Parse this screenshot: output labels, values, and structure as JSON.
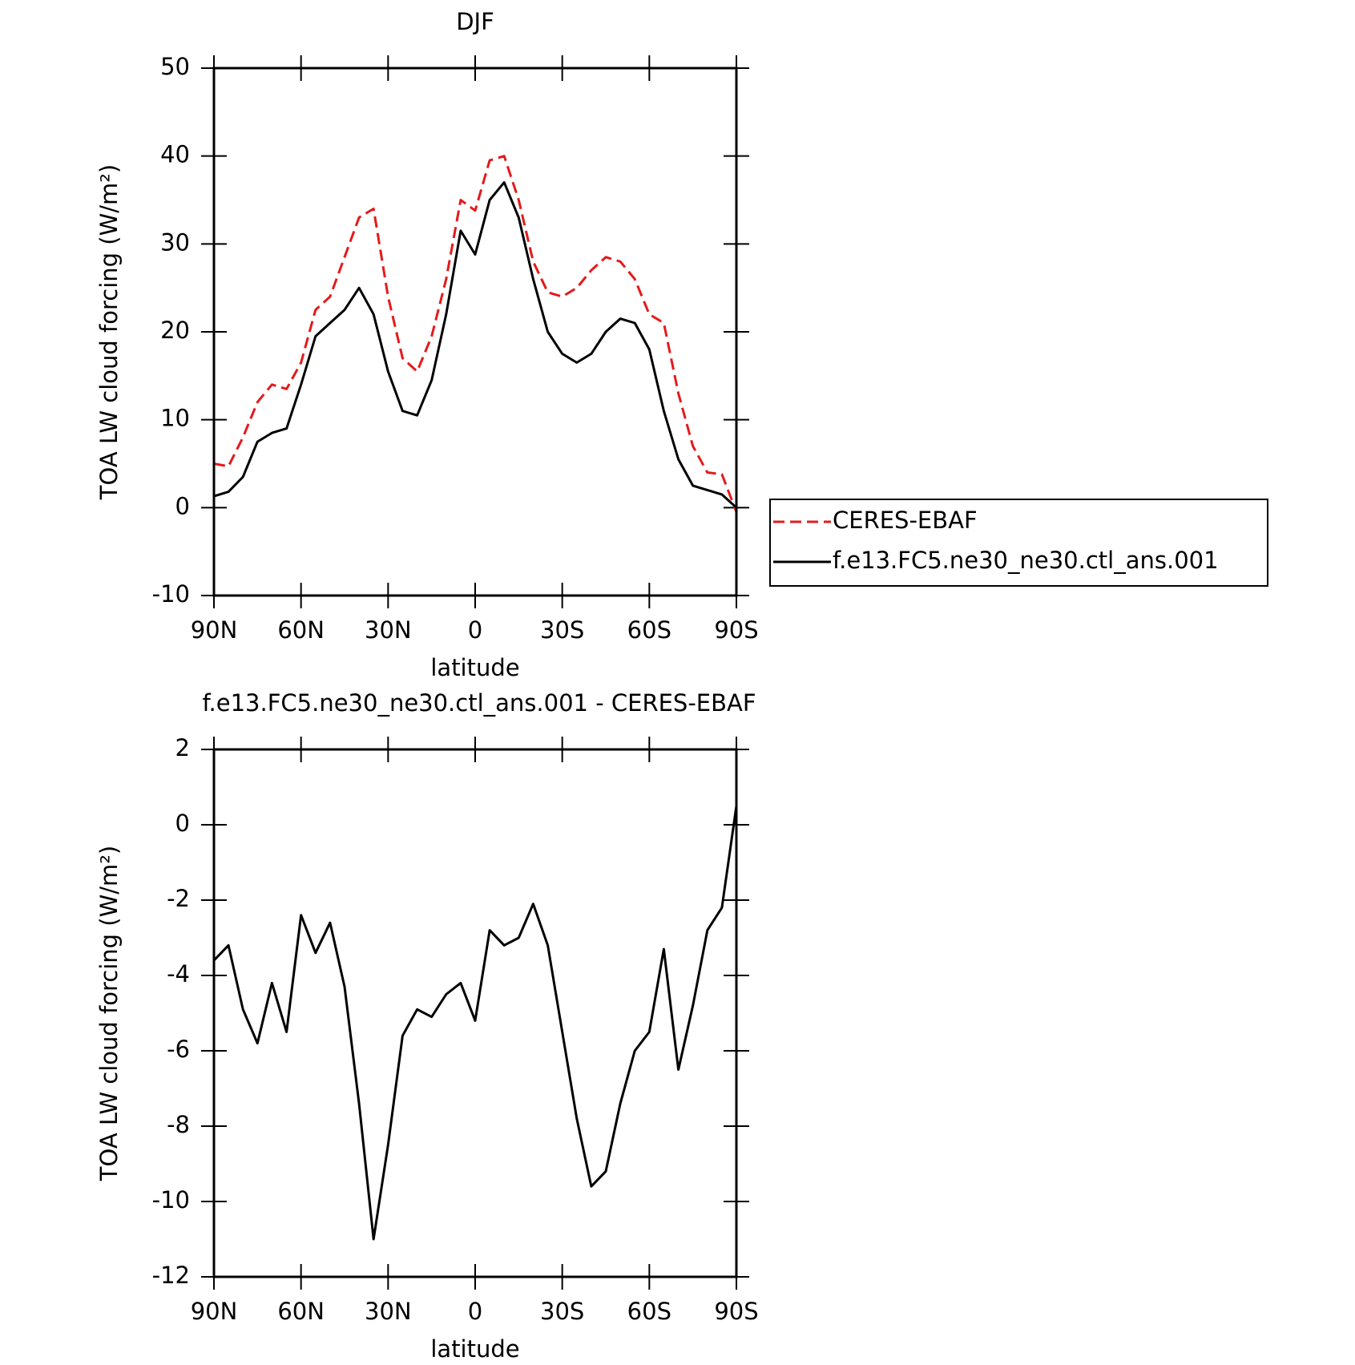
{
  "chart_data": [
    {
      "type": "line",
      "title": "DJF",
      "xlabel": "latitude",
      "ylabel": "TOA LW cloud forcing (W/m²)",
      "x": [
        90,
        85,
        80,
        75,
        70,
        65,
        60,
        55,
        50,
        45,
        40,
        35,
        30,
        25,
        20,
        15,
        10,
        5,
        0,
        -5,
        -10,
        -15,
        -20,
        -25,
        -30,
        -35,
        -40,
        -45,
        -50,
        -55,
        -60,
        -65,
        -70,
        -75,
        -80,
        -85,
        -90
      ],
      "series": [
        {
          "name": "CERES-EBAF",
          "color": "#e41a1c",
          "style": "dashed",
          "values": [
            5,
            4.7,
            8,
            12,
            14,
            13.5,
            16.5,
            22.5,
            24,
            28.5,
            33,
            34,
            24,
            17,
            15.5,
            19.5,
            26,
            35,
            33.8,
            39.5,
            40,
            35,
            28,
            24.5,
            24,
            25,
            27,
            28.5,
            28,
            26,
            22,
            21,
            13,
            7,
            4,
            3.8,
            -0.5
          ]
        },
        {
          "name": "f.e13.FC5.ne30_ne30.ctl_ans.001",
          "color": "#000000",
          "style": "solid",
          "values": [
            1.3,
            1.8,
            3.5,
            7.5,
            8.5,
            9,
            14,
            19.5,
            21,
            22.5,
            25,
            22,
            15.5,
            11,
            10.5,
            14.5,
            22,
            31.5,
            28.8,
            35,
            37,
            33,
            26,
            20,
            17.5,
            16.5,
            17.5,
            20,
            21.5,
            21,
            18,
            11,
            5.5,
            2.5,
            2,
            1.5,
            0
          ]
        }
      ],
      "xlim": [
        90,
        -90
      ],
      "xticks": [
        {
          "value": 90,
          "label": "90N"
        },
        {
          "value": 60,
          "label": "60N"
        },
        {
          "value": 30,
          "label": "30N"
        },
        0,
        {
          "value": -30,
          "label": "30S"
        },
        {
          "value": -60,
          "label": "60S"
        },
        {
          "value": -90,
          "label": "90S"
        }
      ],
      "ylim": [
        -10,
        50
      ],
      "yticks": [
        -10,
        0,
        10,
        20,
        30,
        40,
        50
      ],
      "legend": "right"
    },
    {
      "type": "line",
      "title": "f.e13.FC5.ne30_ne30.ctl_ans.001 - CERES-EBAF",
      "xlabel": "latitude",
      "ylabel": "TOA LW cloud forcing (W/m²)",
      "x": [
        90,
        85,
        80,
        75,
        70,
        65,
        60,
        55,
        50,
        45,
        40,
        35,
        30,
        25,
        20,
        15,
        10,
        5,
        0,
        -5,
        -10,
        -15,
        -20,
        -25,
        -30,
        -35,
        -40,
        -45,
        -50,
        -55,
        -60,
        -65,
        -70,
        -75,
        -80,
        -85,
        -90
      ],
      "series": [
        {
          "color": "#000000",
          "style": "solid",
          "values": [
            -3.6,
            -3.2,
            -4.9,
            -5.8,
            -4.2,
            -5.5,
            -2.4,
            -3.4,
            -2.6,
            -4.3,
            -7.4,
            -11,
            -8.5,
            -5.6,
            -4.9,
            -5.1,
            -4.5,
            -4.2,
            -5.2,
            -2.8,
            -3.2,
            -3.0,
            -2.1,
            -3.2,
            -5.5,
            -7.8,
            -9.6,
            -9.2,
            -7.4,
            -6.0,
            -5.5,
            -3.3,
            -6.5,
            -4.8,
            -2.8,
            -2.2,
            0.5
          ]
        }
      ],
      "xlim": [
        90,
        -90
      ],
      "xticks": [
        {
          "value": 90,
          "label": "90N"
        },
        {
          "value": 60,
          "label": "60N"
        },
        {
          "value": 30,
          "label": "30N"
        },
        0,
        {
          "value": -30,
          "label": "30S"
        },
        {
          "value": -60,
          "label": "60S"
        },
        {
          "value": -90,
          "label": "90S"
        }
      ],
      "ylim": [
        -12,
        2
      ],
      "yticks": [
        -12,
        -10,
        -8,
        -6,
        -4,
        -2,
        0,
        2
      ]
    }
  ]
}
